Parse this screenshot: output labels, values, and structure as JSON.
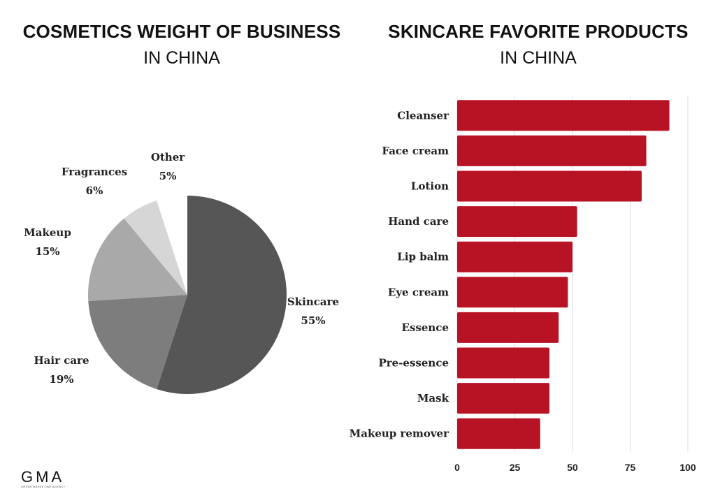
{
  "left_title": {
    "main": "COSMETICS WEIGHT OF BUSINESS",
    "sub": "IN CHINA"
  },
  "right_title": {
    "main": "SKINCARE FAVORITE PRODUCTS",
    "sub": "IN CHINA"
  },
  "logo": {
    "brand": "GMA",
    "tagline": "GREEN MARKETING AGENCY"
  },
  "colors": {
    "bar": "#b81325",
    "grid": "#dddddd"
  },
  "chart_data": [
    {
      "type": "pie",
      "title": "COSMETICS WEIGHT OF BUSINESS IN CHINA",
      "slices": [
        {
          "label": "Skincare",
          "value": 55,
          "value_label": "55%",
          "color": "#565656"
        },
        {
          "label": "Hair care",
          "value": 19,
          "value_label": "19%",
          "color": "#7d7d7d"
        },
        {
          "label": "Makeup",
          "value": 15,
          "value_label": "15%",
          "color": "#a9a9a9"
        },
        {
          "label": "Fragrances",
          "value": 6,
          "value_label": "6%",
          "color": "#d6d6d6"
        },
        {
          "label": "Other",
          "value": 5,
          "value_label": "5%",
          "color": "#ffffff"
        }
      ],
      "start": "12 o'clock",
      "direction": "clockwise"
    },
    {
      "type": "bar",
      "orientation": "horizontal",
      "title": "SKINCARE FAVORITE PRODUCTS IN CHINA",
      "categories": [
        "Cleanser",
        "Face cream",
        "Lotion",
        "Hand care",
        "Lip balm",
        "Eye cream",
        "Essence",
        "Pre-essence",
        "Mask",
        "Makeup remover"
      ],
      "values": [
        92,
        82,
        80,
        52,
        50,
        48,
        44,
        40,
        40,
        36
      ],
      "xlim": [
        0,
        100
      ],
      "xticks": [
        0,
        25,
        50,
        75,
        100
      ],
      "grid": "vertical"
    }
  ]
}
